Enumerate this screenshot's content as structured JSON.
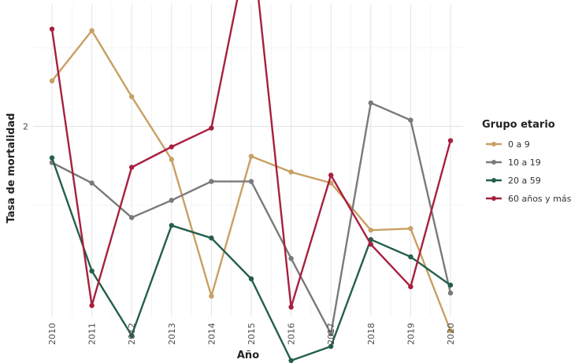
{
  "chart_data": {
    "type": "line",
    "xlabel": "Año",
    "ylabel": "Tasa de mortalidad",
    "x": [
      "2010",
      "2011",
      "2012",
      "2013",
      "2014",
      "2015",
      "2016",
      "2017",
      "2018",
      "2019",
      "2020"
    ],
    "y_ticks": [
      2
    ],
    "ylim": [
      0.79,
      2.78
    ],
    "grid": true,
    "legend": {
      "title": "Grupo etario",
      "placement": "right"
    },
    "series": [
      {
        "name": "0 a 9",
        "color": "#c8a063",
        "values": [
          2.29,
          2.61,
          2.19,
          1.79,
          0.92,
          1.81,
          1.71,
          1.64,
          1.34,
          1.35,
          0.7
        ]
      },
      {
        "name": "10 a 19",
        "color": "#7a7a7a",
        "values": [
          1.77,
          1.64,
          1.42,
          1.53,
          1.65,
          1.65,
          1.16,
          0.68,
          2.15,
          2.04,
          0.94
        ]
      },
      {
        "name": "20 a 59",
        "color": "#245f4b",
        "values": [
          1.8,
          1.08,
          0.67,
          1.37,
          1.29,
          1.03,
          0.51,
          0.6,
          1.28,
          1.17,
          0.99
        ]
      },
      {
        "name": "60 años y más",
        "color": "#a8203f",
        "values": [
          2.62,
          0.86,
          1.74,
          1.87,
          1.99,
          3.25,
          0.85,
          1.69,
          1.25,
          0.98,
          1.91
        ]
      }
    ]
  }
}
